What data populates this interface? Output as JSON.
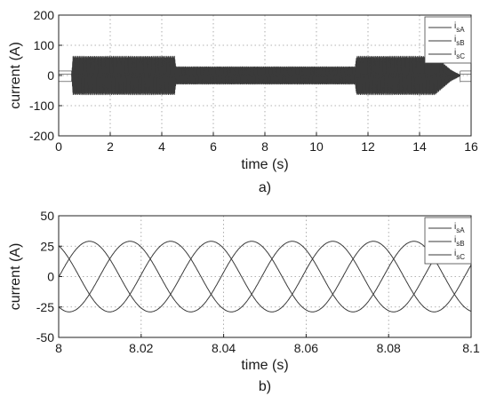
{
  "chart_data": [
    {
      "type": "line",
      "caption": "a)",
      "xlabel": "time (s)",
      "ylabel": "current (A)",
      "xlim": [
        0,
        16
      ],
      "ylim": [
        -200,
        200
      ],
      "xticks": [
        0,
        2,
        4,
        6,
        8,
        10,
        12,
        14,
        16
      ],
      "yticks": [
        200,
        100,
        0,
        -100,
        -200
      ],
      "ytick_labels": [
        "200",
        "100",
        "0",
        "-100",
        "-200"
      ],
      "grid": true,
      "legend_position": "top-right",
      "legend": [
        {
          "main": "i",
          "sub": "sA"
        },
        {
          "main": "i",
          "sub": "sB"
        },
        {
          "main": "i",
          "sub": "sC"
        }
      ],
      "envelope": {
        "time": [
          0.0,
          0.5,
          0.55,
          4.5,
          4.55,
          11.5,
          11.55,
          14.6,
          15.2,
          15.6,
          16.0
        ],
        "amplitude": [
          0,
          0,
          65,
          65,
          30,
          30,
          65,
          65,
          20,
          0,
          0
        ]
      },
      "idle_levels": [
        -20,
        5,
        15
      ]
    },
    {
      "type": "line",
      "caption": "b)",
      "xlabel": "time (s)",
      "ylabel": "current (A)",
      "xlim": [
        8,
        8.1
      ],
      "ylim": [
        -50,
        50
      ],
      "xticks": [
        8,
        8.02,
        8.04,
        8.06,
        8.08,
        8.1
      ],
      "xtick_labels": [
        "8",
        "8.02",
        "8.04",
        "8.06",
        "8.08",
        "8.1"
      ],
      "yticks": [
        50,
        25,
        0,
        -25,
        -50
      ],
      "ytick_labels": [
        "50",
        "25",
        "0",
        "-25",
        "-50"
      ],
      "grid": true,
      "legend_position": "top-right",
      "legend": [
        {
          "main": "i",
          "sub": "sA"
        },
        {
          "main": "i",
          "sub": "sB"
        },
        {
          "main": "i",
          "sub": "sC"
        }
      ],
      "series_shape": {
        "amplitude": 29,
        "period": 0.0295,
        "phase_deg": [
          -1,
          119,
          239
        ]
      }
    }
  ]
}
